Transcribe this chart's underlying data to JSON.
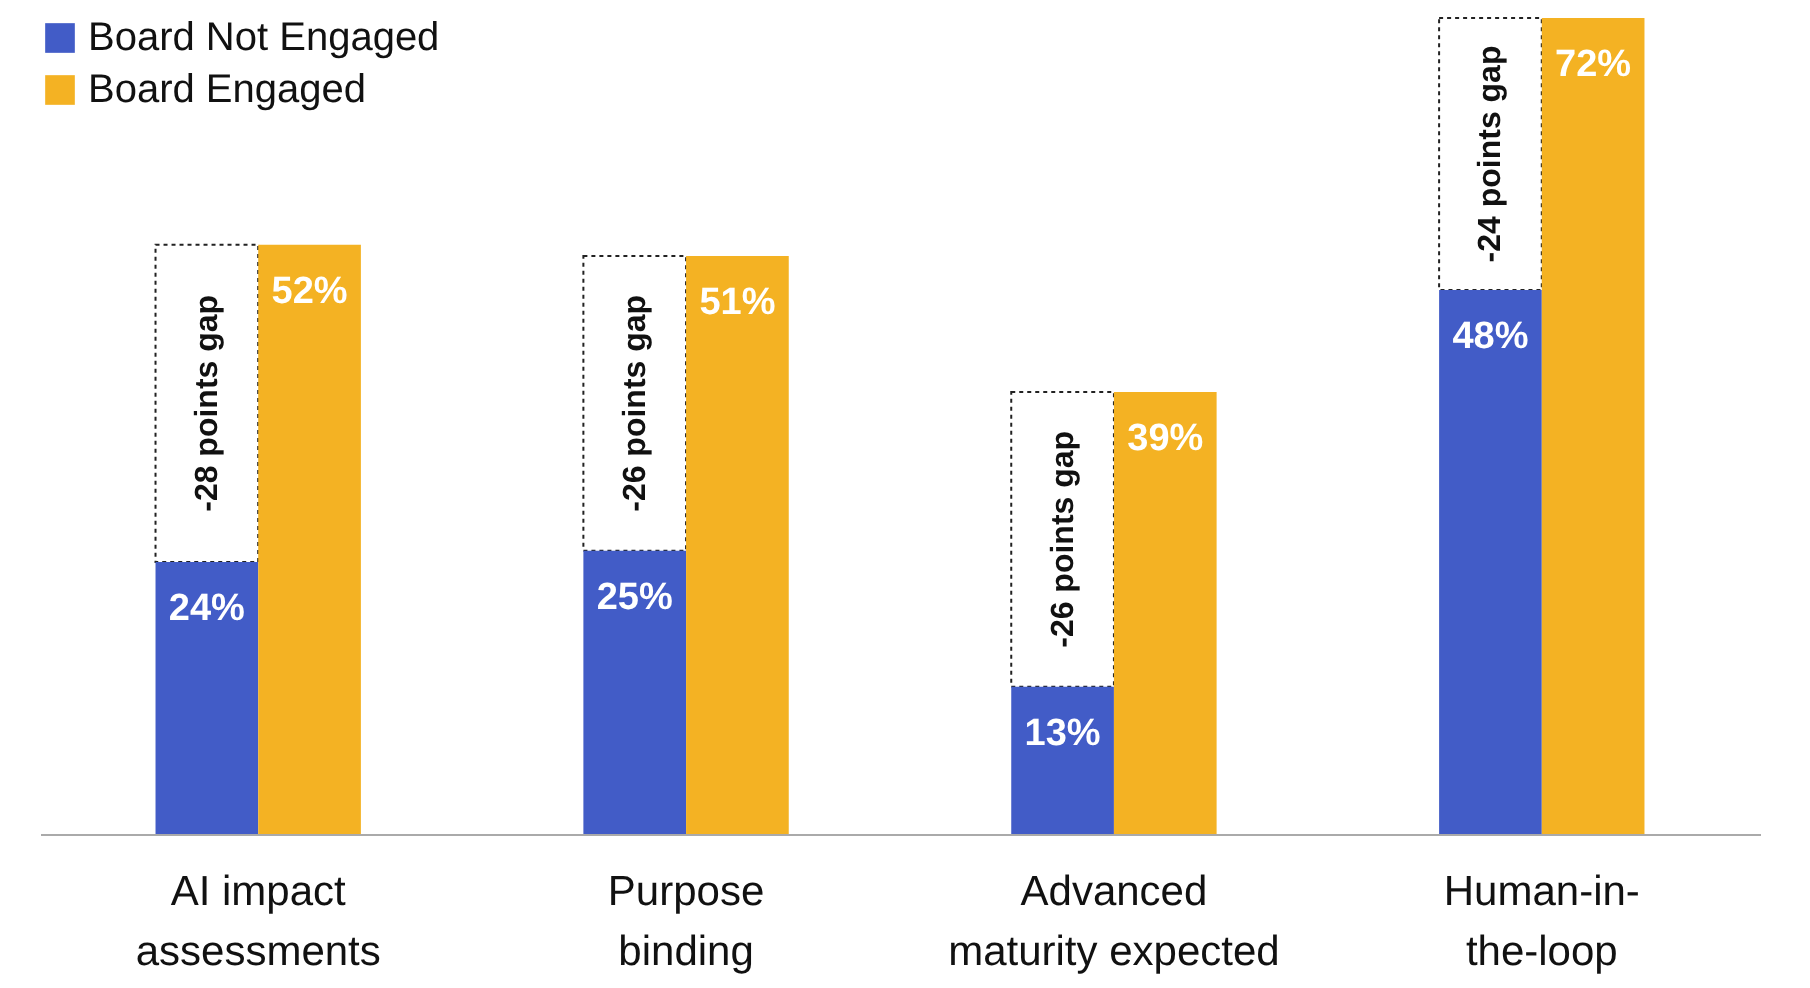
{
  "chart_data": {
    "type": "bar",
    "categories": [
      "AI impact assessments",
      "Purpose binding",
      "Advanced maturity expected",
      "Human-in-the-loop"
    ],
    "series": [
      {
        "name": "Board Not Engaged",
        "color": "#425cc7",
        "values": [
          24,
          25,
          13,
          48
        ],
        "value_labels": [
          "24%",
          "25%",
          "13%",
          "48%"
        ]
      },
      {
        "name": "Board Engaged",
        "color": "#f4b223",
        "values": [
          52,
          51,
          39,
          72
        ],
        "value_labels": [
          "52%",
          "51%",
          "39%",
          "72%"
        ]
      }
    ],
    "annotations": [
      "-28 points gap",
      "-26 points gap",
      "-26 points gap",
      "-24 points gap"
    ],
    "legend": "top left",
    "tick_labels": "x"
  }
}
